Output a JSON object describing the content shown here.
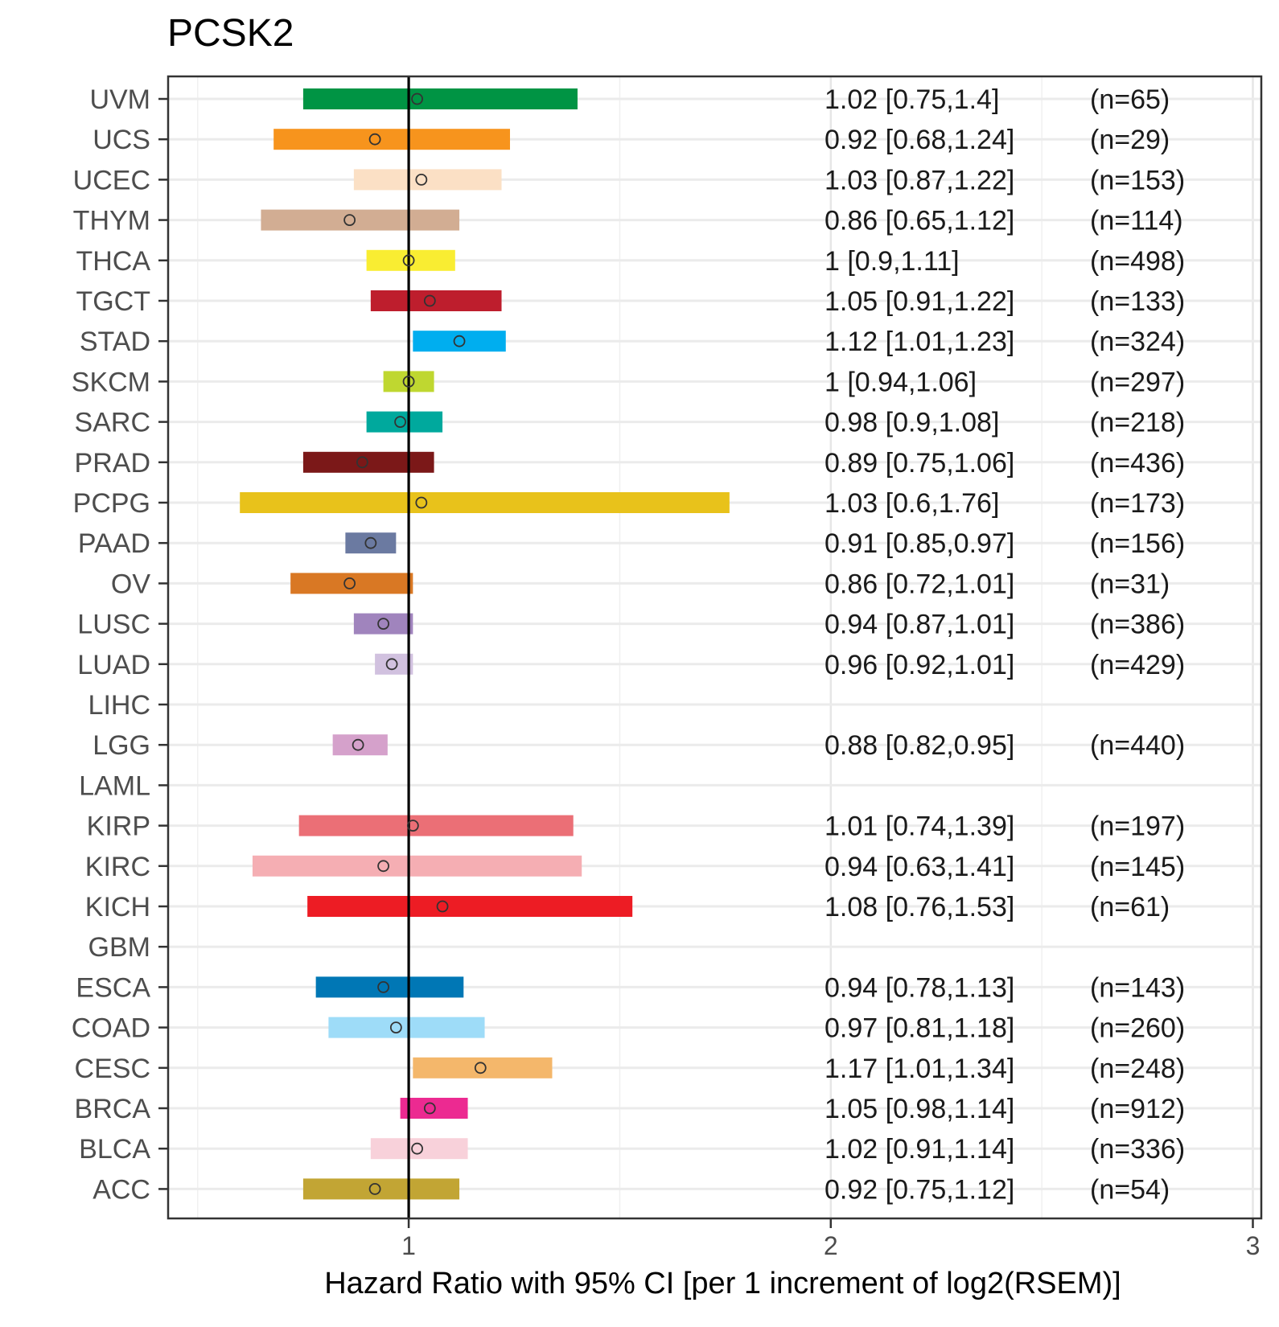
{
  "chart_data": {
    "type": "forest",
    "title": "PCSK2",
    "xlabel": "Hazard Ratio with 95% CI [per 1 increment of log2(RSEM)]",
    "x_ticks": [
      1,
      2,
      3
    ],
    "xlim": [
      0.43,
      3.02
    ],
    "reference_line": 1,
    "grid": true,
    "rows": [
      {
        "label": "UVM",
        "hr": 1.02,
        "lo": 0.75,
        "hi": 1.4,
        "text": "1.02 [0.75,1.4]",
        "n": "(n=65)",
        "color": "#009444"
      },
      {
        "label": "UCS",
        "hr": 0.92,
        "lo": 0.68,
        "hi": 1.24,
        "text": "0.92 [0.68,1.24]",
        "n": "(n=29)",
        "color": "#f7941d"
      },
      {
        "label": "UCEC",
        "hr": 1.03,
        "lo": 0.87,
        "hi": 1.22,
        "text": "1.03 [0.87,1.22]",
        "n": "(n=153)",
        "color": "#fbe0c5"
      },
      {
        "label": "THYM",
        "hr": 0.86,
        "lo": 0.65,
        "hi": 1.12,
        "text": "0.86 [0.65,1.12]",
        "n": "(n=114)",
        "color": "#d2ad93"
      },
      {
        "label": "THCA",
        "hr": 1,
        "lo": 0.9,
        "hi": 1.11,
        "text": "1 [0.9,1.11]",
        "n": "(n=498)",
        "color": "#f9ed32"
      },
      {
        "label": "TGCT",
        "hr": 1.05,
        "lo": 0.91,
        "hi": 1.22,
        "text": "1.05 [0.91,1.22]",
        "n": "(n=133)",
        "color": "#be1e2d"
      },
      {
        "label": "STAD",
        "hr": 1.12,
        "lo": 1.01,
        "hi": 1.23,
        "text": "1.12 [1.01,1.23]",
        "n": "(n=324)",
        "color": "#00aeef"
      },
      {
        "label": "SKCM",
        "hr": 1,
        "lo": 0.94,
        "hi": 1.06,
        "text": "1 [0.94,1.06]",
        "n": "(n=297)",
        "color": "#bfd730"
      },
      {
        "label": "SARC",
        "hr": 0.98,
        "lo": 0.9,
        "hi": 1.08,
        "text": "0.98 [0.9,1.08]",
        "n": "(n=218)",
        "color": "#00a99d"
      },
      {
        "label": "PRAD",
        "hr": 0.89,
        "lo": 0.75,
        "hi": 1.06,
        "text": "0.89 [0.75,1.06]",
        "n": "(n=436)",
        "color": "#7b1818"
      },
      {
        "label": "PCPG",
        "hr": 1.03,
        "lo": 0.6,
        "hi": 1.76,
        "text": "1.03 [0.6,1.76]",
        "n": "(n=173)",
        "color": "#e8c21b"
      },
      {
        "label": "PAAD",
        "hr": 0.91,
        "lo": 0.85,
        "hi": 0.97,
        "text": "0.91 [0.85,0.97]",
        "n": "(n=156)",
        "color": "#6b7aa1"
      },
      {
        "label": "OV",
        "hr": 0.86,
        "lo": 0.72,
        "hi": 1.01,
        "text": "0.86 [0.72,1.01]",
        "n": "(n=31)",
        "color": "#d97824"
      },
      {
        "label": "LUSC",
        "hr": 0.94,
        "lo": 0.87,
        "hi": 1.01,
        "text": "0.94 [0.87,1.01]",
        "n": "(n=386)",
        "color": "#a084bd"
      },
      {
        "label": "LUAD",
        "hr": 0.96,
        "lo": 0.92,
        "hi": 1.01,
        "text": "0.96 [0.92,1.01]",
        "n": "(n=429)",
        "color": "#d1c1df"
      },
      {
        "label": "LIHC",
        "hr": null,
        "lo": null,
        "hi": null,
        "text": "",
        "n": "",
        "color": ""
      },
      {
        "label": "LGG",
        "hr": 0.88,
        "lo": 0.82,
        "hi": 0.95,
        "text": "0.88 [0.82,0.95]",
        "n": "(n=440)",
        "color": "#d5a1cb"
      },
      {
        "label": "LAML",
        "hr": null,
        "lo": null,
        "hi": null,
        "text": "",
        "n": "",
        "color": ""
      },
      {
        "label": "KIRP",
        "hr": 1.01,
        "lo": 0.74,
        "hi": 1.39,
        "text": "1.01 [0.74,1.39]",
        "n": "(n=197)",
        "color": "#eb6f76"
      },
      {
        "label": "KIRC",
        "hr": 0.94,
        "lo": 0.63,
        "hi": 1.41,
        "text": "0.94 [0.63,1.41]",
        "n": "(n=145)",
        "color": "#f5aeb3"
      },
      {
        "label": "KICH",
        "hr": 1.08,
        "lo": 0.76,
        "hi": 1.53,
        "text": "1.08 [0.76,1.53]",
        "n": "(n=61)",
        "color": "#ed1c24"
      },
      {
        "label": "GBM",
        "hr": null,
        "lo": null,
        "hi": null,
        "text": "",
        "n": "",
        "color": ""
      },
      {
        "label": "ESCA",
        "hr": 0.94,
        "lo": 0.78,
        "hi": 1.13,
        "text": "0.94 [0.78,1.13]",
        "n": "(n=143)",
        "color": "#0077b5"
      },
      {
        "label": "COAD",
        "hr": 0.97,
        "lo": 0.81,
        "hi": 1.18,
        "text": "0.97 [0.81,1.18]",
        "n": "(n=260)",
        "color": "#9edcf8"
      },
      {
        "label": "CESC",
        "hr": 1.17,
        "lo": 1.01,
        "hi": 1.34,
        "text": "1.17 [1.01,1.34]",
        "n": "(n=248)",
        "color": "#f4b76b"
      },
      {
        "label": "BRCA",
        "hr": 1.05,
        "lo": 0.98,
        "hi": 1.14,
        "text": "1.05 [0.98,1.14]",
        "n": "(n=912)",
        "color": "#ec2a91"
      },
      {
        "label": "BLCA",
        "hr": 1.02,
        "lo": 0.91,
        "hi": 1.14,
        "text": "1.02 [0.91,1.14]",
        "n": "(n=336)",
        "color": "#f8d1da"
      },
      {
        "label": "ACC",
        "hr": 0.92,
        "lo": 0.75,
        "hi": 1.12,
        "text": "0.92 [0.75,1.12]",
        "n": "(n=54)",
        "color": "#c2a534"
      }
    ]
  }
}
